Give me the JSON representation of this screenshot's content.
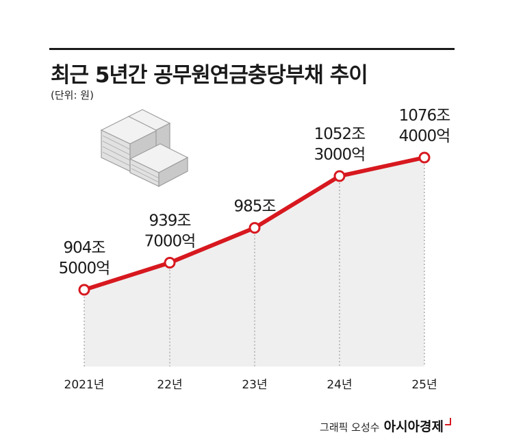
{
  "header": {
    "title": "최근 5년간 공무원연금충당부채 추이",
    "unit": "(단위: 원)"
  },
  "credit": {
    "author": "그래픽 오성수",
    "brand": "아시아경제"
  },
  "colors": {
    "line": "#d7181f",
    "area": "#efefef",
    "text": "#1a1a1a"
  },
  "icon": "money-stack-icon",
  "chart_data": {
    "type": "area",
    "categories": [
      "2021년",
      "22년",
      "23년",
      "24년",
      "25년"
    ],
    "values": [
      904.5,
      939.7,
      985,
      1052.3,
      1076.4
    ],
    "labels": [
      [
        "904조",
        "5000억"
      ],
      [
        "939조",
        "7000억"
      ],
      [
        "985조"
      ],
      [
        "1052조",
        "3000억"
      ],
      [
        "1076조",
        "4000억"
      ]
    ],
    "title": "최근 5년간 공무원연금충당부채 추이",
    "ylabel": "",
    "xlabel": "",
    "ylim": [
      800,
      1120
    ],
    "grid": false,
    "legend": "none"
  }
}
